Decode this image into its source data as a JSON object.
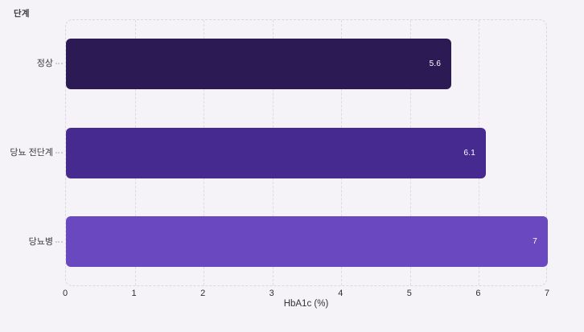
{
  "chart_data": {
    "type": "bar",
    "orientation": "horizontal",
    "title": "단계",
    "categories": [
      "정상",
      "당뇨 전단계",
      "당뇨병"
    ],
    "values": [
      5.6,
      6.1,
      7
    ],
    "value_labels": [
      "5.6",
      "6.1",
      "7"
    ],
    "bar_colors": [
      "#2c1a54",
      "#462a90",
      "#6a48c0"
    ],
    "xlabel": "HbA1c (%)",
    "ylabel": "단계",
    "xlim": [
      0,
      7
    ],
    "x_ticks": [
      "0",
      "1",
      "2",
      "3",
      "4",
      "5",
      "6",
      "7"
    ],
    "grid": true,
    "legend": false
  },
  "colors": {
    "background": "#f5f3f7",
    "gridline": "#dcdae2",
    "tick_text": "#2e2e33",
    "category_text": "#3a3a40",
    "value_text": "#ffffff"
  }
}
